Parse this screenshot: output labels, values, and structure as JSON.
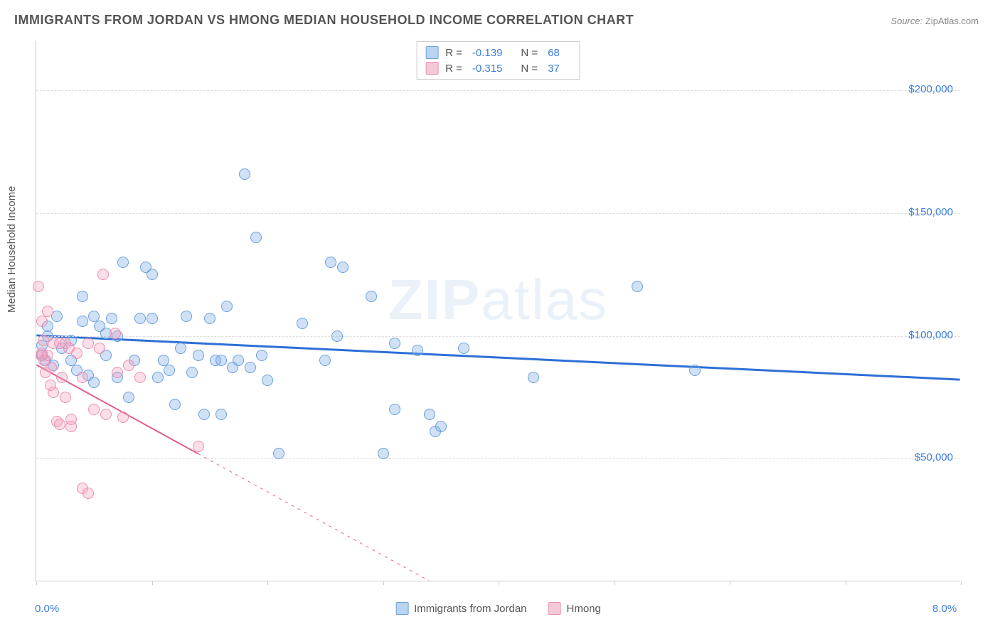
{
  "title": "IMMIGRANTS FROM JORDAN VS HMONG MEDIAN HOUSEHOLD INCOME CORRELATION CHART",
  "source_label": "Source:",
  "source_name": "ZipAtlas.com",
  "y_axis_label": "Median Household Income",
  "watermark": {
    "bold": "ZIP",
    "light": "atlas"
  },
  "chart": {
    "type": "scatter",
    "xlim": [
      0,
      8
    ],
    "ylim": [
      0,
      220000
    ],
    "y_ticks": [
      {
        "value": 50000,
        "label": "$50,000"
      },
      {
        "value": 100000,
        "label": "$100,000"
      },
      {
        "value": 150000,
        "label": "$150,000"
      },
      {
        "value": 200000,
        "label": "$200,000"
      }
    ],
    "x_ticks": [
      0,
      1,
      2,
      3,
      4,
      5,
      6,
      7,
      8
    ],
    "x_labels": [
      {
        "value": 0,
        "label": "0.0%"
      },
      {
        "value": 8,
        "label": "8.0%"
      }
    ],
    "grid_color": "#dddddd",
    "background_color": "#ffffff",
    "series": [
      {
        "name": "Immigrants from Jordan",
        "fill_color": "rgba(120, 170, 230, 0.35)",
        "stroke_color": "#6aa0dd",
        "swatch_fill": "#b8d4f0",
        "swatch_stroke": "#6aa0dd",
        "r_value": "-0.139",
        "n_value": "68",
        "trendline": {
          "x1": 0,
          "y1": 100000,
          "x2": 8,
          "y2": 82000,
          "stroke": "#2e6fd6",
          "width": 3,
          "solid_until_x": 8
        },
        "points": [
          [
            0.05,
            92000
          ],
          [
            0.05,
            96000
          ],
          [
            0.08,
            90000
          ],
          [
            0.1,
            104000
          ],
          [
            0.1,
            100000
          ],
          [
            0.15,
            88000
          ],
          [
            0.18,
            108000
          ],
          [
            0.22,
            95000
          ],
          [
            0.3,
            90000
          ],
          [
            0.3,
            98000
          ],
          [
            0.35,
            86000
          ],
          [
            0.4,
            106000
          ],
          [
            0.45,
            84000
          ],
          [
            0.5,
            81000
          ],
          [
            0.55,
            104000
          ],
          [
            0.6,
            92000
          ],
          [
            0.65,
            107000
          ],
          [
            0.7,
            100000
          ],
          [
            0.75,
            130000
          ],
          [
            0.8,
            75000
          ],
          [
            0.85,
            90000
          ],
          [
            0.9,
            107000
          ],
          [
            0.95,
            128000
          ],
          [
            1.0,
            107000
          ],
          [
            1.05,
            83000
          ],
          [
            1.1,
            90000
          ],
          [
            1.15,
            86000
          ],
          [
            1.2,
            72000
          ],
          [
            1.25,
            95000
          ],
          [
            1.3,
            108000
          ],
          [
            1.35,
            85000
          ],
          [
            1.4,
            92000
          ],
          [
            1.45,
            68000
          ],
          [
            1.5,
            107000
          ],
          [
            1.55,
            90000
          ],
          [
            1.6,
            90000
          ],
          [
            1.65,
            112000
          ],
          [
            1.7,
            87000
          ],
          [
            1.75,
            90000
          ],
          [
            1.8,
            166000
          ],
          [
            1.85,
            87000
          ],
          [
            1.9,
            140000
          ],
          [
            1.95,
            92000
          ],
          [
            2.0,
            82000
          ],
          [
            2.1,
            52000
          ],
          [
            2.3,
            105000
          ],
          [
            2.5,
            90000
          ],
          [
            2.55,
            130000
          ],
          [
            2.6,
            100000
          ],
          [
            2.65,
            128000
          ],
          [
            2.9,
            116000
          ],
          [
            3.0,
            52000
          ],
          [
            3.1,
            97000
          ],
          [
            3.1,
            70000
          ],
          [
            3.3,
            94000
          ],
          [
            3.4,
            68000
          ],
          [
            3.45,
            61000
          ],
          [
            3.5,
            63000
          ],
          [
            3.7,
            95000
          ],
          [
            4.3,
            83000
          ],
          [
            5.2,
            120000
          ],
          [
            5.7,
            86000
          ],
          [
            0.4,
            116000
          ],
          [
            0.6,
            101000
          ],
          [
            0.7,
            83000
          ],
          [
            0.5,
            108000
          ],
          [
            1.0,
            125000
          ],
          [
            1.6,
            68000
          ]
        ]
      },
      {
        "name": "Hmong",
        "fill_color": "rgba(245, 160, 190, 0.35)",
        "stroke_color": "#e98fb0",
        "swatch_fill": "#f6c9d9",
        "swatch_stroke": "#e98fb0",
        "r_value": "-0.315",
        "n_value": "37",
        "trendline": {
          "x1": 0,
          "y1": 88000,
          "x2": 3.4,
          "y2": 0,
          "stroke": "#e16091",
          "width": 2,
          "solid_until_x": 1.4
        },
        "points": [
          [
            0.02,
            120000
          ],
          [
            0.04,
            92000
          ],
          [
            0.05,
            93000
          ],
          [
            0.05,
            106000
          ],
          [
            0.06,
            98000
          ],
          [
            0.07,
            90000
          ],
          [
            0.08,
            85000
          ],
          [
            0.1,
            92000
          ],
          [
            0.1,
            110000
          ],
          [
            0.12,
            80000
          ],
          [
            0.13,
            87000
          ],
          [
            0.15,
            97000
          ],
          [
            0.15,
            77000
          ],
          [
            0.18,
            65000
          ],
          [
            0.2,
            97000
          ],
          [
            0.2,
            64000
          ],
          [
            0.22,
            83000
          ],
          [
            0.25,
            97000
          ],
          [
            0.25,
            75000
          ],
          [
            0.28,
            95000
          ],
          [
            0.3,
            66000
          ],
          [
            0.3,
            63000
          ],
          [
            0.35,
            93000
          ],
          [
            0.4,
            83000
          ],
          [
            0.4,
            38000
          ],
          [
            0.45,
            97000
          ],
          [
            0.45,
            36000
          ],
          [
            0.5,
            70000
          ],
          [
            0.55,
            95000
          ],
          [
            0.58,
            125000
          ],
          [
            0.6,
            68000
          ],
          [
            0.68,
            101000
          ],
          [
            0.7,
            85000
          ],
          [
            0.75,
            67000
          ],
          [
            0.8,
            88000
          ],
          [
            0.9,
            83000
          ],
          [
            1.4,
            55000
          ]
        ]
      }
    ],
    "legend_top": {
      "r_label": "R =",
      "n_label": "N ="
    },
    "legend_bottom": [
      {
        "label": "Immigrants from Jordan",
        "swatch_fill": "#b8d4f0",
        "swatch_stroke": "#6aa0dd"
      },
      {
        "label": "Hmong",
        "swatch_fill": "#f6c9d9",
        "swatch_stroke": "#e98fb0"
      }
    ]
  }
}
